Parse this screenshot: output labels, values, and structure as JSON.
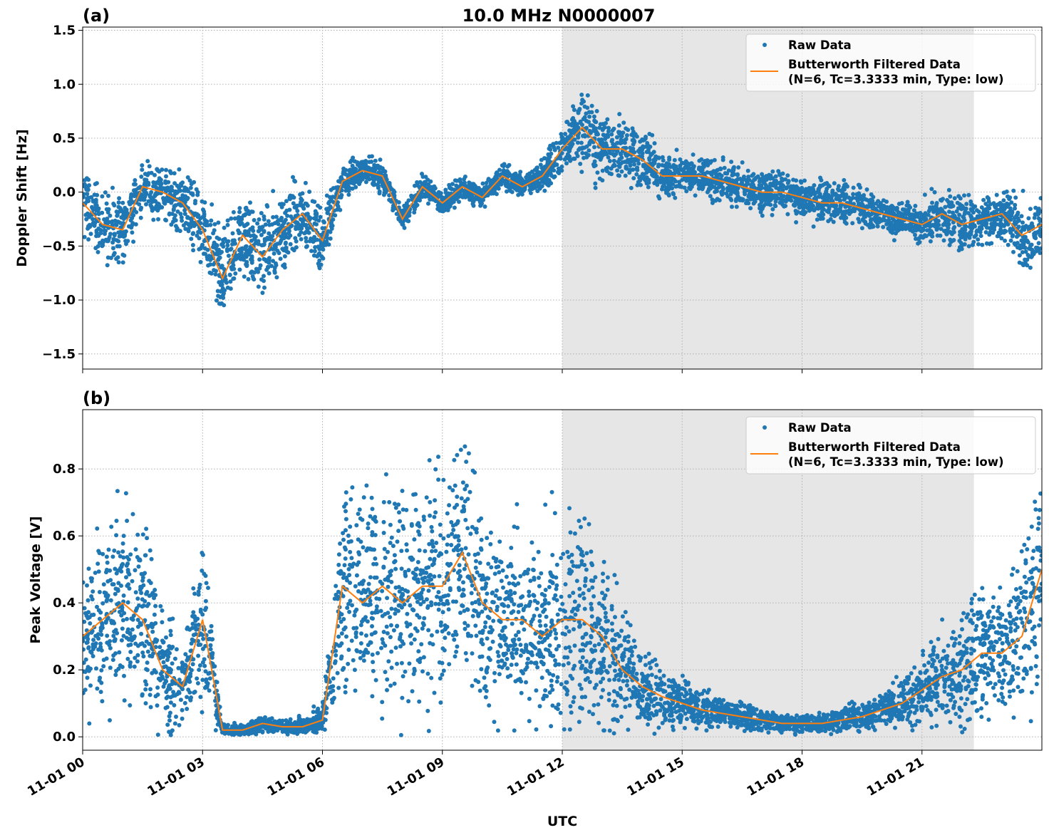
{
  "title": "10.0 MHz N0000007",
  "colors": {
    "raw": "#1f77b4",
    "filtered": "#ff7f0e",
    "shade": "#e6e6e6",
    "grid": "#b0b0b0"
  },
  "xaxis": {
    "label": "UTC",
    "range_hours": [
      0,
      24
    ],
    "ticks": [
      {
        "hour": 0,
        "label": "11-01 00"
      },
      {
        "hour": 3,
        "label": "11-01 03"
      },
      {
        "hour": 6,
        "label": "11-01 06"
      },
      {
        "hour": 9,
        "label": "11-01 09"
      },
      {
        "hour": 12,
        "label": "11-01 12"
      },
      {
        "hour": 15,
        "label": "11-01 15"
      },
      {
        "hour": 18,
        "label": "11-01 18"
      },
      {
        "hour": 21,
        "label": "11-01 21"
      }
    ]
  },
  "legend": {
    "raw": "Raw Data",
    "filtered_1": "Butterworth Filtered Data",
    "filtered_2": "(N=6, Tc=3.3333 min, Type: low)",
    "placement": "top-right"
  },
  "chart_data": [
    {
      "type": "scatter+line",
      "panel": "(a)",
      "ylabel": "Doppler Shift [Hz]",
      "ylim": [
        -1.64,
        1.53
      ],
      "yticks": [
        {
          "v": 1.5,
          "label": "1.5"
        },
        {
          "v": 1.0,
          "label": "1.0"
        },
        {
          "v": 0.5,
          "label": "0.5"
        },
        {
          "v": 0.0,
          "label": "0.0"
        },
        {
          "v": -0.5,
          "label": "−0.5"
        },
        {
          "v": -1.0,
          "label": "−1.0"
        },
        {
          "v": -1.5,
          "label": "−1.5"
        }
      ],
      "grid": true,
      "shaded_hours": [
        12.0,
        22.3
      ],
      "x_hours": [
        0,
        0.5,
        1,
        1.5,
        2,
        2.5,
        3,
        3.5,
        4,
        4.5,
        5,
        5.5,
        6,
        6.5,
        7,
        7.5,
        8,
        8.5,
        9,
        9.5,
        10,
        10.5,
        11,
        11.5,
        12,
        12.5,
        13,
        13.5,
        14,
        14.5,
        15,
        15.5,
        16,
        16.5,
        17,
        17.5,
        18,
        18.5,
        19,
        19.5,
        20,
        20.5,
        21,
        21.5,
        22,
        22.5,
        23,
        23.5,
        24
      ],
      "filtered": [
        -0.1,
        -0.3,
        -0.35,
        0.05,
        0.0,
        -0.1,
        -0.35,
        -0.8,
        -0.4,
        -0.6,
        -0.35,
        -0.2,
        -0.45,
        0.1,
        0.2,
        0.15,
        -0.25,
        0.05,
        -0.1,
        0.05,
        -0.05,
        0.15,
        0.05,
        0.15,
        0.4,
        0.6,
        0.4,
        0.4,
        0.3,
        0.15,
        0.15,
        0.15,
        0.1,
        0.05,
        0.0,
        0.0,
        -0.05,
        -0.1,
        -0.1,
        -0.15,
        -0.2,
        -0.25,
        -0.3,
        -0.2,
        -0.3,
        -0.25,
        -0.2,
        -0.4,
        -0.3
      ],
      "raw_spread": [
        0.3,
        0.35,
        0.35,
        0.25,
        0.25,
        0.3,
        0.35,
        0.45,
        0.45,
        0.45,
        0.4,
        0.35,
        0.35,
        0.2,
        0.15,
        0.15,
        0.12,
        0.12,
        0.12,
        0.12,
        0.12,
        0.12,
        0.12,
        0.15,
        0.25,
        0.45,
        0.35,
        0.3,
        0.3,
        0.25,
        0.2,
        0.2,
        0.2,
        0.2,
        0.2,
        0.2,
        0.2,
        0.2,
        0.2,
        0.2,
        0.2,
        0.2,
        0.2,
        0.25,
        0.3,
        0.25,
        0.25,
        0.35,
        0.3
      ]
    },
    {
      "type": "scatter+line",
      "panel": "(b)",
      "ylabel": "Peak Voltage [V]",
      "ylim": [
        -0.04,
        0.977
      ],
      "yticks": [
        {
          "v": 0.8,
          "label": "0.8"
        },
        {
          "v": 0.6,
          "label": "0.6"
        },
        {
          "v": 0.4,
          "label": "0.4"
        },
        {
          "v": 0.2,
          "label": "0.2"
        },
        {
          "v": 0.0,
          "label": "0.0"
        }
      ],
      "grid": true,
      "shaded_hours": [
        12.0,
        22.3
      ],
      "x_hours": [
        0,
        0.5,
        1,
        1.5,
        2,
        2.5,
        3,
        3.5,
        4,
        4.5,
        5,
        5.5,
        6,
        6.5,
        7,
        7.5,
        8,
        8.5,
        9,
        9.5,
        10,
        10.5,
        11,
        11.5,
        12,
        12.5,
        13,
        13.5,
        14,
        14.5,
        15,
        15.5,
        16,
        16.5,
        17,
        17.5,
        18,
        18.5,
        19,
        19.5,
        20,
        20.5,
        21,
        21.5,
        22,
        22.5,
        23,
        23.5,
        24
      ],
      "filtered": [
        0.3,
        0.35,
        0.4,
        0.35,
        0.2,
        0.15,
        0.35,
        0.02,
        0.02,
        0.04,
        0.03,
        0.03,
        0.05,
        0.45,
        0.4,
        0.45,
        0.4,
        0.45,
        0.45,
        0.55,
        0.4,
        0.35,
        0.35,
        0.3,
        0.35,
        0.35,
        0.3,
        0.2,
        0.15,
        0.12,
        0.1,
        0.08,
        0.07,
        0.06,
        0.05,
        0.04,
        0.04,
        0.04,
        0.05,
        0.06,
        0.08,
        0.1,
        0.14,
        0.18,
        0.2,
        0.25,
        0.25,
        0.3,
        0.5
      ],
      "raw_spread": [
        0.25,
        0.3,
        0.3,
        0.3,
        0.2,
        0.15,
        0.3,
        0.02,
        0.02,
        0.03,
        0.02,
        0.03,
        0.05,
        0.35,
        0.35,
        0.35,
        0.35,
        0.35,
        0.35,
        0.35,
        0.35,
        0.3,
        0.3,
        0.3,
        0.35,
        0.35,
        0.3,
        0.2,
        0.12,
        0.1,
        0.08,
        0.06,
        0.05,
        0.04,
        0.04,
        0.03,
        0.03,
        0.03,
        0.04,
        0.05,
        0.06,
        0.08,
        0.1,
        0.15,
        0.18,
        0.2,
        0.2,
        0.25,
        0.35
      ]
    }
  ]
}
